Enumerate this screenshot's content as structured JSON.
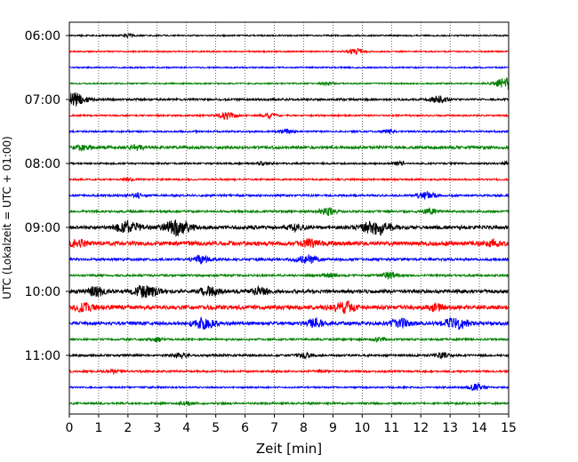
{
  "chart_data": {
    "type": "line",
    "xlabel": "Zeit  [min]",
    "ylabel": "UTC (Lokalzeit = UTC + 01:00)",
    "xlim": [
      0,
      15
    ],
    "x_ticks": [
      "0",
      "1",
      "2",
      "3",
      "4",
      "5",
      "6",
      "7",
      "8",
      "9",
      "10",
      "11",
      "12",
      "13",
      "14",
      "15"
    ],
    "y_ticks": [
      "06:00",
      "07:00",
      "08:00",
      "09:00",
      "10:00",
      "11:00"
    ],
    "grid": "vertical dotted",
    "trace_colors": [
      "#000000",
      "#ff0000",
      "#0000ff",
      "#008000"
    ],
    "traces": [
      {
        "start": "06:00",
        "color": "#000000",
        "amplitude": 0.1,
        "bursts": [
          [
            2.0,
            0.2
          ]
        ]
      },
      {
        "start": "06:15",
        "color": "#ff0000",
        "amplitude": 0.1,
        "bursts": [
          [
            9.8,
            0.4
          ]
        ]
      },
      {
        "start": "06:30",
        "color": "#0000ff",
        "amplitude": 0.1,
        "bursts": []
      },
      {
        "start": "06:45",
        "color": "#008000",
        "amplitude": 0.1,
        "bursts": [
          [
            8.8,
            0.2
          ],
          [
            15.0,
            0.9
          ]
        ]
      },
      {
        "start": "07:00",
        "color": "#000000",
        "amplitude": 0.15,
        "bursts": [
          [
            0.15,
            0.9
          ],
          [
            12.6,
            0.5
          ]
        ]
      },
      {
        "start": "07:15",
        "color": "#ff0000",
        "amplitude": 0.12,
        "bursts": [
          [
            5.4,
            0.5
          ],
          [
            6.8,
            0.35
          ]
        ]
      },
      {
        "start": "07:30",
        "color": "#0000ff",
        "amplitude": 0.12,
        "bursts": [
          [
            7.4,
            0.3
          ],
          [
            10.9,
            0.25
          ]
        ]
      },
      {
        "start": "07:45",
        "color": "#008000",
        "amplitude": 0.2,
        "bursts": [
          [
            0.5,
            0.45
          ],
          [
            2.3,
            0.35
          ]
        ]
      },
      {
        "start": "08:00",
        "color": "#000000",
        "amplitude": 0.12,
        "bursts": [
          [
            6.6,
            0.25
          ],
          [
            11.3,
            0.25
          ],
          [
            15.0,
            0.25
          ]
        ]
      },
      {
        "start": "08:15",
        "color": "#ff0000",
        "amplitude": 0.12,
        "bursts": [
          [
            2.0,
            0.2
          ]
        ]
      },
      {
        "start": "08:30",
        "color": "#0000ff",
        "amplitude": 0.15,
        "bursts": [
          [
            2.3,
            0.3
          ],
          [
            12.2,
            0.5
          ]
        ]
      },
      {
        "start": "08:45",
        "color": "#008000",
        "amplitude": 0.15,
        "bursts": [
          [
            8.8,
            0.5
          ],
          [
            12.3,
            0.4
          ]
        ]
      },
      {
        "start": "09:00",
        "color": "#000000",
        "amplitude": 0.25,
        "bursts": [
          [
            2.0,
            0.8
          ],
          [
            3.7,
            1.0
          ],
          [
            7.7,
            0.4
          ],
          [
            10.5,
            1.0
          ]
        ]
      },
      {
        "start": "09:15",
        "color": "#ff0000",
        "amplitude": 0.3,
        "bursts": [
          [
            0.3,
            0.45
          ],
          [
            8.2,
            0.5
          ],
          [
            14.5,
            0.35
          ]
        ]
      },
      {
        "start": "09:30",
        "color": "#0000ff",
        "amplitude": 0.18,
        "bursts": [
          [
            4.5,
            0.5
          ],
          [
            8.1,
            0.6
          ]
        ]
      },
      {
        "start": "09:45",
        "color": "#008000",
        "amplitude": 0.15,
        "bursts": [
          [
            10.9,
            0.45
          ],
          [
            8.9,
            0.3
          ]
        ]
      },
      {
        "start": "10:00",
        "color": "#000000",
        "amplitude": 0.25,
        "bursts": [
          [
            0.9,
            0.6
          ],
          [
            2.6,
            0.8
          ],
          [
            4.8,
            0.6
          ],
          [
            6.5,
            0.5
          ]
        ]
      },
      {
        "start": "10:15",
        "color": "#ff0000",
        "amplitude": 0.3,
        "bursts": [
          [
            0.5,
            0.5
          ],
          [
            9.4,
            0.7
          ],
          [
            12.5,
            0.4
          ]
        ]
      },
      {
        "start": "10:30",
        "color": "#0000ff",
        "amplitude": 0.25,
        "bursts": [
          [
            4.6,
            0.7
          ],
          [
            8.4,
            0.5
          ],
          [
            11.3,
            0.6
          ],
          [
            13.2,
            0.8
          ]
        ]
      },
      {
        "start": "10:45",
        "color": "#008000",
        "amplitude": 0.14,
        "bursts": [
          [
            3.0,
            0.3
          ],
          [
            10.6,
            0.25
          ]
        ]
      },
      {
        "start": "11:00",
        "color": "#000000",
        "amplitude": 0.15,
        "bursts": [
          [
            3.8,
            0.35
          ],
          [
            8.0,
            0.3
          ],
          [
            12.7,
            0.35
          ]
        ]
      },
      {
        "start": "11:15",
        "color": "#ff0000",
        "amplitude": 0.14,
        "bursts": [
          [
            1.5,
            0.2
          ],
          [
            8.6,
            0.2
          ]
        ]
      },
      {
        "start": "11:30",
        "color": "#0000ff",
        "amplitude": 0.12,
        "bursts": [
          [
            13.9,
            0.5
          ]
        ]
      },
      {
        "start": "11:45",
        "color": "#008000",
        "amplitude": 0.14,
        "bursts": [
          [
            4.0,
            0.25
          ]
        ]
      }
    ]
  }
}
